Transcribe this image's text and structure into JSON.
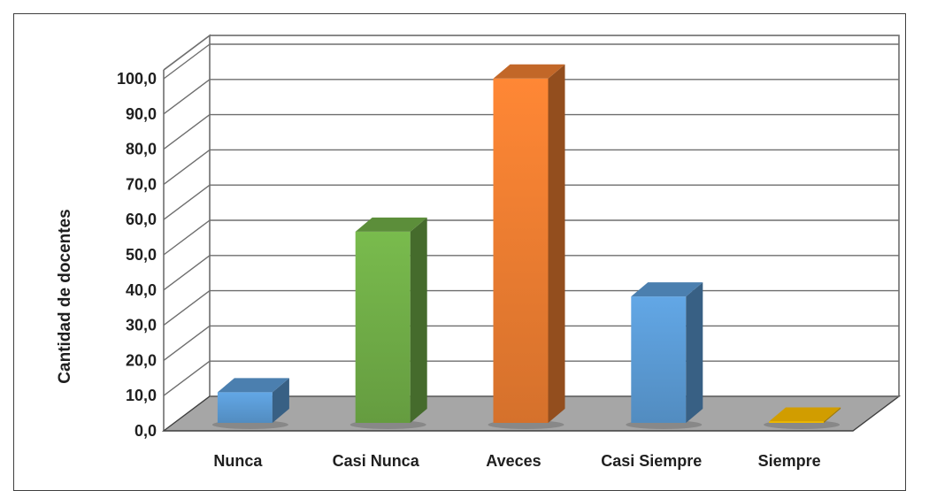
{
  "chart_data": {
    "type": "bar",
    "style": "3d",
    "categories": [
      "Nunca",
      "Casi Nunca",
      "Aveces",
      "Casi Siempre",
      "Siempre"
    ],
    "values": [
      8.7,
      54.3,
      97.8,
      35.9,
      0.3
    ],
    "colors": [
      "#5b9bd5",
      "#70ad47",
      "#ed7d31",
      "#5b9bd5",
      "#ffc000"
    ],
    "ylabel": "Cantidad de docentes",
    "xlabel": "",
    "ylim": [
      0,
      100
    ],
    "yticks": [
      "0,0",
      "10,0",
      "20,0",
      "30,0",
      "40,0",
      "50,0",
      "60,0",
      "70,0",
      "80,0",
      "90,0",
      "100,0"
    ],
    "grid": true,
    "legend": "none"
  }
}
